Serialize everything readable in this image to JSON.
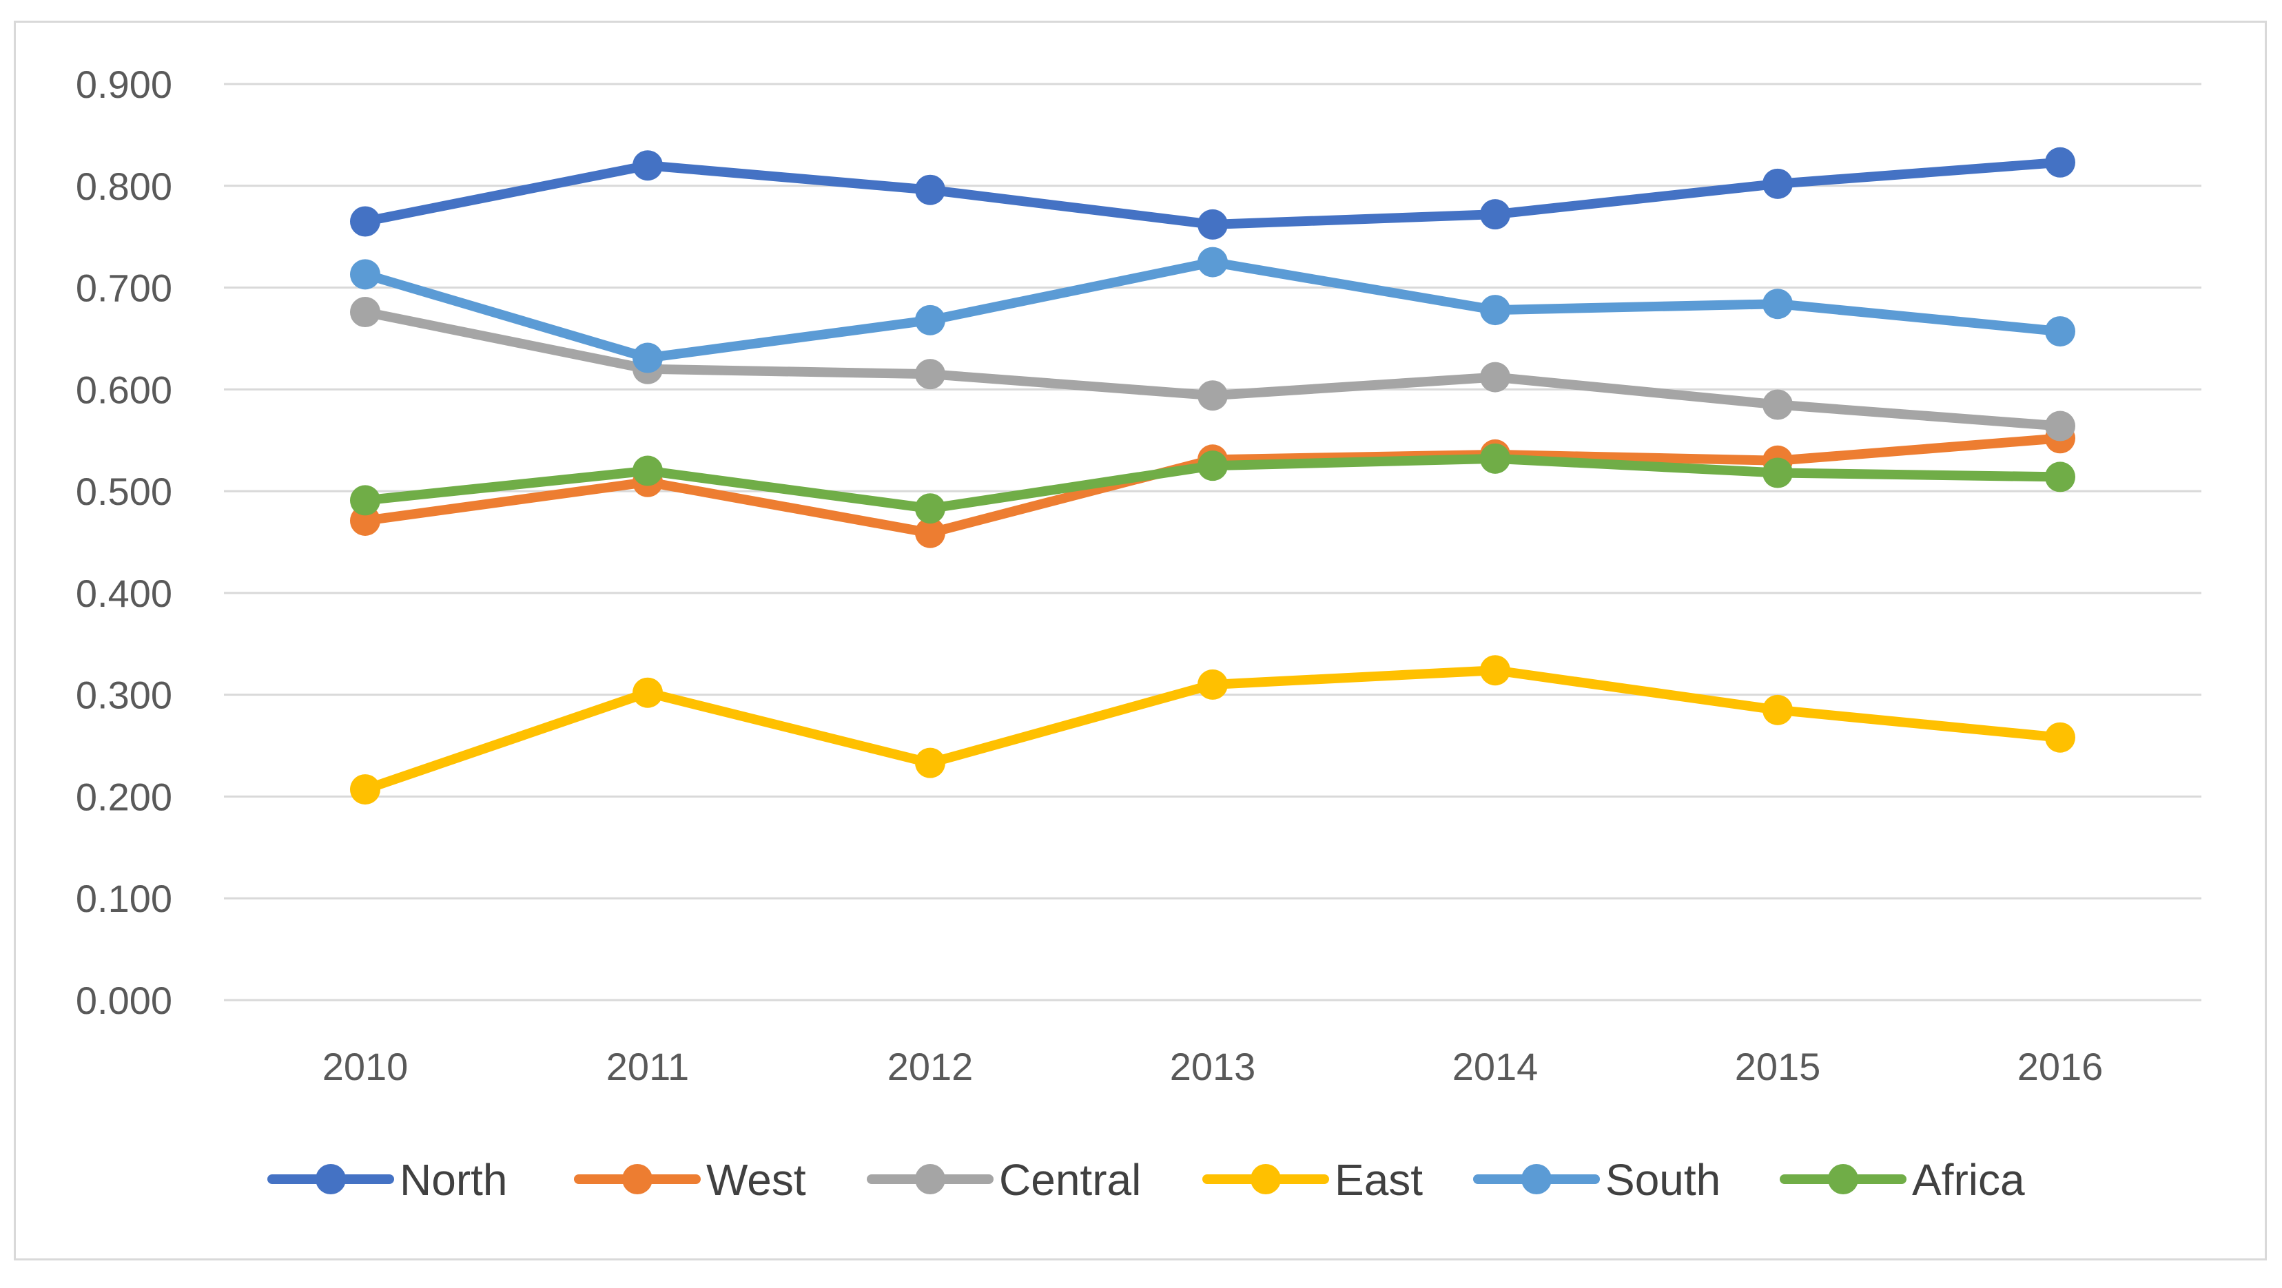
{
  "chart_data": {
    "type": "line",
    "title": "",
    "xlabel": "",
    "ylabel": "",
    "categories": [
      "2010",
      "2011",
      "2012",
      "2013",
      "2014",
      "2015",
      "2016"
    ],
    "ylim": [
      0,
      0.9
    ],
    "yticks": [
      "0.000",
      "0.100",
      "0.200",
      "0.300",
      "0.400",
      "0.500",
      "0.600",
      "0.700",
      "0.800",
      "0.900"
    ],
    "grid": true,
    "legend_position": "bottom",
    "series": [
      {
        "name": "North",
        "color": "#4472C4",
        "values": [
          0.765,
          0.82,
          0.796,
          0.762,
          0.772,
          0.802,
          0.823
        ]
      },
      {
        "name": "West",
        "color": "#ED7D31",
        "values": [
          0.471,
          0.509,
          0.459,
          0.531,
          0.536,
          0.53,
          0.552
        ]
      },
      {
        "name": "Central",
        "color": "#A5A5A5",
        "values": [
          0.676,
          0.62,
          0.615,
          0.594,
          0.612,
          0.585,
          0.564
        ]
      },
      {
        "name": "East",
        "color": "#FFC000",
        "values": [
          0.207,
          0.302,
          0.233,
          0.31,
          0.324,
          0.285,
          0.258
        ]
      },
      {
        "name": "South",
        "color": "#5B9BD5",
        "values": [
          0.713,
          0.631,
          0.668,
          0.725,
          0.678,
          0.684,
          0.657
        ]
      },
      {
        "name": "Africa",
        "color": "#70AD47",
        "values": [
          0.491,
          0.52,
          0.483,
          0.525,
          0.532,
          0.518,
          0.514
        ]
      }
    ]
  }
}
